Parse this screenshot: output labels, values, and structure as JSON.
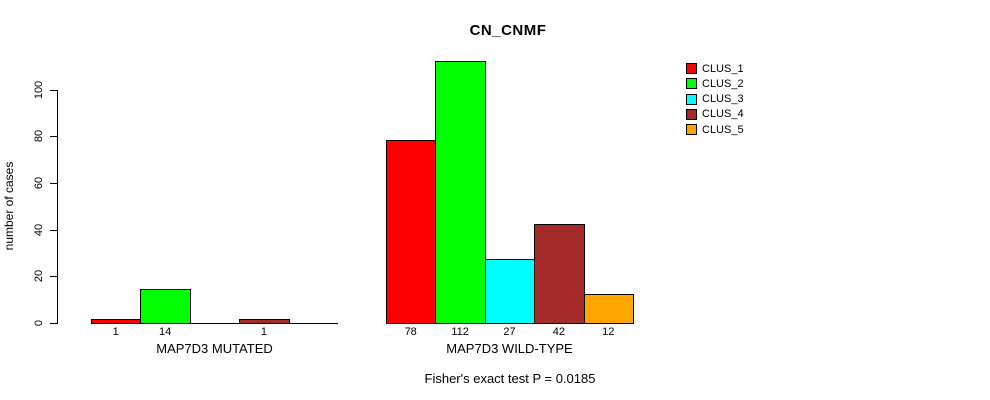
{
  "title": "CN_CNMF",
  "y_axis_label": "number of cases",
  "footer": "Fisher's exact test P = 0.0185",
  "chart_data": {
    "type": "bar",
    "title": "CN_CNMF",
    "xlabel": "",
    "ylabel": "number of cases",
    "yticks": [
      0,
      20,
      40,
      60,
      80,
      100
    ],
    "ylim": [
      0,
      112
    ],
    "grid": false,
    "legend_position": "right",
    "bar_value_labels_shown_only_when_nonzero": true,
    "groups": [
      {
        "label": "MAP7D3 MUTATED",
        "values": [
          1,
          14,
          0,
          1,
          0
        ]
      },
      {
        "label": "MAP7D3 WILD-TYPE",
        "values": [
          78,
          112,
          27,
          42,
          12
        ]
      }
    ],
    "series": [
      {
        "name": "CLUS_1",
        "color": "#ff0000"
      },
      {
        "name": "CLUS_2",
        "color": "#00ff00"
      },
      {
        "name": "CLUS_3",
        "color": "#00ffff"
      },
      {
        "name": "CLUS_4",
        "color": "#a52a2a"
      },
      {
        "name": "CLUS_5",
        "color": "#ffa500"
      }
    ],
    "annotation": "Fisher's exact test P = 0.0185"
  }
}
